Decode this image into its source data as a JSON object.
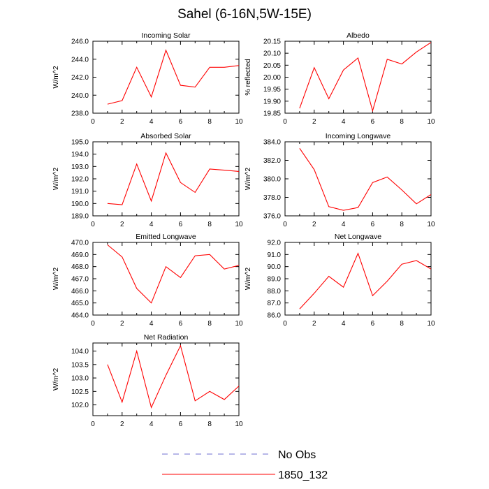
{
  "title": "Sahel (6-16N,5W-15E)",
  "colors": {
    "model": "#ff0000",
    "obs": "#6f6fd0",
    "axis": "#000000"
  },
  "legend": {
    "obs_label": "No Obs",
    "model_label": "1850_132"
  },
  "chart_data": [
    {
      "type": "line",
      "title": "Incoming Solar",
      "ylabel": "W/m^2",
      "xlim": [
        0,
        10
      ],
      "ylim": [
        238.0,
        246.0
      ],
      "xticks": [
        0,
        2,
        4,
        6,
        8,
        10
      ],
      "yticks": [
        238.0,
        240.0,
        242.0,
        244.0,
        246.0
      ],
      "ytick_labels": [
        "238.0",
        "240.0",
        "242.0",
        "244.0",
        "246.0"
      ],
      "series": [
        {
          "name": "1850_132",
          "x": [
            1,
            2,
            3,
            4,
            5,
            6,
            7,
            8,
            9,
            10
          ],
          "values": [
            239.0,
            239.4,
            243.1,
            239.8,
            245.0,
            241.1,
            240.9,
            243.1,
            243.1,
            243.3
          ]
        }
      ]
    },
    {
      "type": "line",
      "title": "Albedo",
      "ylabel": "% reflected",
      "xlim": [
        0,
        10
      ],
      "ylim": [
        19.85,
        20.15
      ],
      "xticks": [
        0,
        2,
        4,
        6,
        8,
        10
      ],
      "yticks": [
        19.85,
        19.9,
        19.95,
        20.0,
        20.05,
        20.1,
        20.15
      ],
      "ytick_labels": [
        "19.85",
        "19.90",
        "19.95",
        "20.00",
        "20.05",
        "20.10",
        "20.15"
      ],
      "series": [
        {
          "name": "1850_132",
          "x": [
            1,
            2,
            3,
            4,
            5,
            6,
            7,
            8,
            9,
            10
          ],
          "values": [
            19.87,
            20.04,
            19.91,
            20.03,
            20.08,
            19.86,
            20.075,
            20.055,
            20.105,
            20.145
          ]
        }
      ]
    },
    {
      "type": "line",
      "title": "Absorbed Solar",
      "ylabel": "W/m^2",
      "xlim": [
        0,
        10
      ],
      "ylim": [
        189.0,
        195.0
      ],
      "xticks": [
        0,
        2,
        4,
        6,
        8,
        10
      ],
      "yticks": [
        189.0,
        190.0,
        191.0,
        192.0,
        193.0,
        194.0,
        195.0
      ],
      "ytick_labels": [
        "189.0",
        "190.0",
        "191.0",
        "192.0",
        "193.0",
        "194.0",
        "195.0"
      ],
      "series": [
        {
          "name": "1850_132",
          "x": [
            1,
            2,
            3,
            4,
            5,
            6,
            7,
            8,
            9,
            10
          ],
          "values": [
            190.0,
            189.9,
            193.2,
            190.2,
            194.1,
            191.7,
            190.9,
            192.8,
            192.7,
            192.6
          ]
        }
      ]
    },
    {
      "type": "line",
      "title": "Incoming Longwave",
      "ylabel": "W/m^2",
      "xlim": [
        0,
        10
      ],
      "ylim": [
        376.0,
        384.0
      ],
      "xticks": [
        0,
        2,
        4,
        6,
        8,
        10
      ],
      "yticks": [
        376.0,
        378.0,
        380.0,
        382.0,
        384.0
      ],
      "ytick_labels": [
        "376.0",
        "378.0",
        "380.0",
        "382.0",
        "384.0"
      ],
      "series": [
        {
          "name": "1850_132",
          "x": [
            1,
            2,
            3,
            4,
            5,
            6,
            7,
            8,
            9,
            10
          ],
          "values": [
            383.3,
            381.0,
            377.0,
            376.6,
            376.9,
            379.6,
            380.2,
            378.8,
            377.3,
            378.3
          ]
        }
      ]
    },
    {
      "type": "line",
      "title": "Emitted Longwave",
      "ylabel": "W/m^2",
      "xlim": [
        0,
        10
      ],
      "ylim": [
        464.0,
        470.0
      ],
      "xticks": [
        0,
        2,
        4,
        6,
        8,
        10
      ],
      "yticks": [
        464.0,
        465.0,
        466.0,
        467.0,
        468.0,
        469.0,
        470.0
      ],
      "ytick_labels": [
        "464.0",
        "465.0",
        "466.0",
        "467.0",
        "468.0",
        "469.0",
        "470.0"
      ],
      "series": [
        {
          "name": "1850_132",
          "x": [
            1,
            2,
            3,
            4,
            5,
            6,
            7,
            8,
            9,
            10
          ],
          "values": [
            469.8,
            468.8,
            466.2,
            465.0,
            468.0,
            467.1,
            468.9,
            469.0,
            467.8,
            468.1
          ]
        }
      ]
    },
    {
      "type": "line",
      "title": "Net Longwave",
      "ylabel": "W/m^2",
      "xlim": [
        0,
        10
      ],
      "ylim": [
        86.0,
        92.0
      ],
      "xticks": [
        0,
        2,
        4,
        6,
        8,
        10
      ],
      "yticks": [
        86.0,
        87.0,
        88.0,
        89.0,
        90.0,
        91.0,
        92.0
      ],
      "ytick_labels": [
        "86.0",
        "87.0",
        "88.0",
        "89.0",
        "90.0",
        "91.0",
        "92.0"
      ],
      "series": [
        {
          "name": "1850_132",
          "x": [
            1,
            2,
            3,
            4,
            5,
            6,
            7,
            8,
            9,
            10
          ],
          "values": [
            86.5,
            87.8,
            89.2,
            88.3,
            91.1,
            87.6,
            88.8,
            90.2,
            90.5,
            89.8
          ]
        }
      ]
    },
    {
      "type": "line",
      "title": "Net Radiation",
      "ylabel": "W/m^2",
      "xlim": [
        0,
        10
      ],
      "ylim": [
        101.6,
        104.3
      ],
      "xticks": [
        0,
        2,
        4,
        6,
        8,
        10
      ],
      "yticks": [
        102.0,
        102.5,
        103.0,
        103.5,
        104.0
      ],
      "ytick_labels": [
        "102.0",
        "102.5",
        "103.0",
        "103.5",
        "104.0"
      ],
      "series": [
        {
          "name": "1850_132",
          "x": [
            1,
            2,
            3,
            4,
            5,
            6,
            7,
            8,
            9,
            10
          ],
          "values": [
            103.5,
            102.1,
            104.0,
            101.9,
            103.1,
            104.2,
            102.15,
            102.5,
            102.2,
            102.7
          ]
        }
      ]
    }
  ]
}
